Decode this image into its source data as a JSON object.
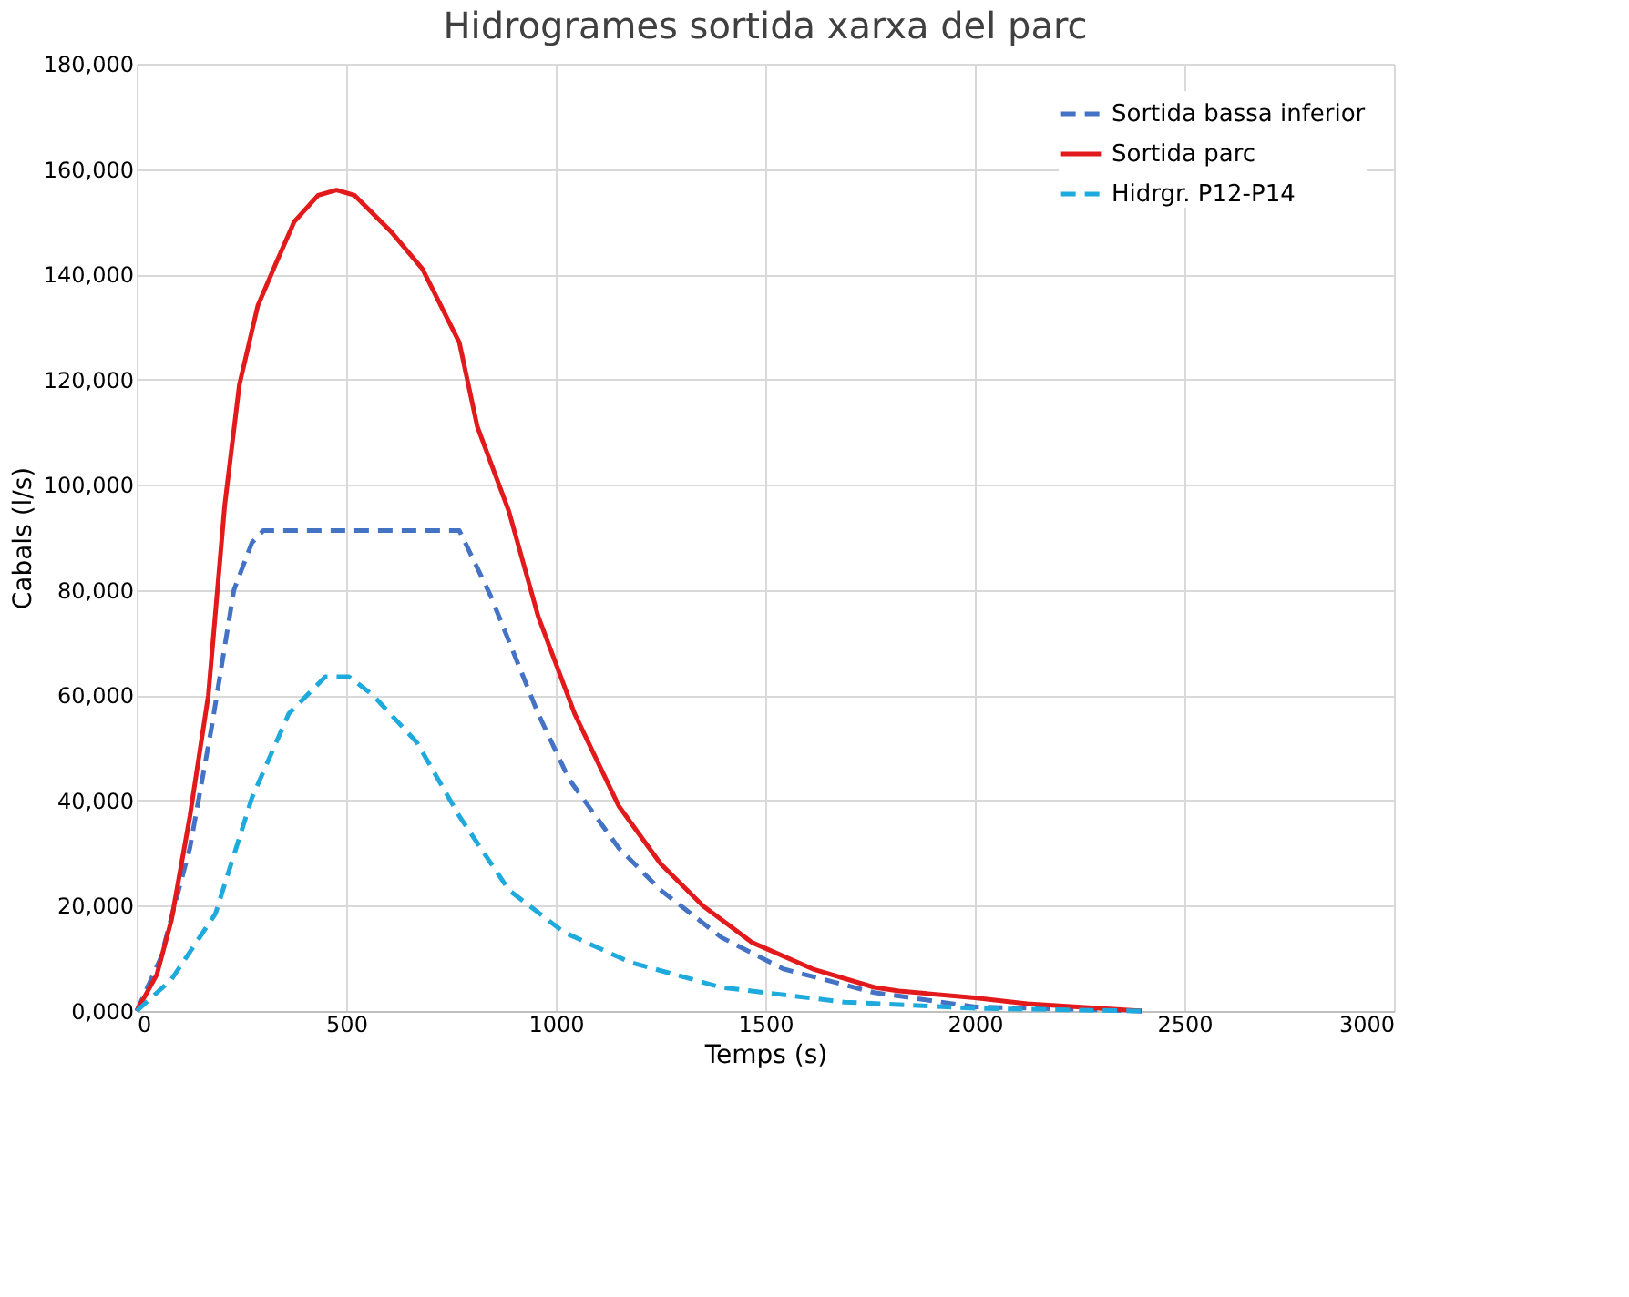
{
  "chart_data": {
    "type": "line",
    "title": "Hidrogrames sortida xarxa del parc",
    "xlabel": "Temps (s)",
    "ylabel": "Cabals (l/s)",
    "xlim": [
      0,
      3000
    ],
    "xticks": [
      0,
      500,
      1000,
      1500,
      2000,
      2500,
      3000
    ],
    "ylim": [
      0,
      180000
    ],
    "yticks": [
      {
        "value": 0,
        "label": "0,000"
      },
      {
        "value": 20000,
        "label": "20,000"
      },
      {
        "value": 40000,
        "label": "40,000"
      },
      {
        "value": 60000,
        "label": "60,000"
      },
      {
        "value": 80000,
        "label": "80,000"
      },
      {
        "value": 100000,
        "label": "100,000"
      },
      {
        "value": 120000,
        "label": "120,000"
      },
      {
        "value": 140000,
        "label": "140,000"
      },
      {
        "value": 160000,
        "label": "160,000"
      },
      {
        "value": 180000,
        "label": "180,000"
      }
    ],
    "grid": true,
    "legend": "top right",
    "marker": "none",
    "series": [
      {
        "name": "Sortida bassa inferior",
        "color": "#4472c4",
        "line_style": "dashed",
        "x": [
          0,
          57,
          127,
          179,
          232,
          275,
          302,
          770,
          844,
          958,
          1032,
          1150,
          1250,
          1395,
          1543,
          1760,
          2000,
          2400
        ],
        "values": [
          0,
          10000,
          31000,
          54000,
          80000,
          89000,
          91300,
          91300,
          79000,
          56500,
          44000,
          31000,
          23000,
          14000,
          8000,
          3500,
          800,
          0
        ]
      },
      {
        "name": "Sortida parc",
        "color": "#e31a1c",
        "line_style": "solid",
        "x": [
          0,
          48,
          83,
          127,
          171,
          210,
          245,
          289,
          332,
          376,
          433,
          477,
          520,
          608,
          682,
          770,
          813,
          888,
          958,
          1045,
          1150,
          1250,
          1351,
          1469,
          1613,
          1760,
          1819,
          2000,
          2125,
          2400
        ],
        "values": [
          0,
          6900,
          17300,
          37000,
          60000,
          96000,
          119000,
          134000,
          142000,
          150000,
          155000,
          156000,
          155000,
          148000,
          141000,
          127000,
          111000,
          95000,
          75000,
          56500,
          39000,
          28000,
          20000,
          13000,
          8000,
          4500,
          3800,
          2500,
          1400,
          0
        ]
      },
      {
        "name": "Hidrgr. P12-P14",
        "color": "#1eaadc",
        "line_style": "dashed",
        "x": [
          0,
          83,
          188,
          275,
          363,
          450,
          507,
          564,
          669,
          770,
          888,
          1019,
          1176,
          1395,
          1688,
          2000,
          2400
        ],
        "values": [
          0,
          6000,
          18500,
          40500,
          56500,
          63500,
          63500,
          60000,
          51000,
          37000,
          23000,
          15000,
          9300,
          4500,
          1700,
          500,
          0
        ]
      }
    ]
  }
}
